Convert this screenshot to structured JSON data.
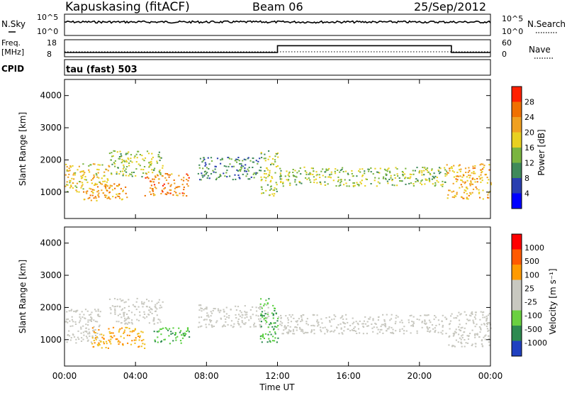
{
  "header": {
    "station": "Kapuskasing (fitACF)",
    "beam": "Beam 06",
    "date": "25/Sep/2012"
  },
  "noise_panel": {
    "left_label": "N.Sky",
    "right_label": "N.Search",
    "left_ticks": [
      "10^5",
      "10^0"
    ],
    "right_ticks": [
      "10^5",
      "10^0"
    ]
  },
  "freq_panel": {
    "left_label_1": "Freq.",
    "left_label_2": "[MHz]",
    "right_label": "Nave",
    "left_ticks": [
      "18",
      "8"
    ],
    "right_ticks": [
      "60",
      "0"
    ]
  },
  "cpid_panel": {
    "label": "CPID",
    "mode_text": "tau (fast) 503"
  },
  "power_panel": {
    "ylabel": "Slant Range [km]",
    "yticks": [
      "4000",
      "3000",
      "2000",
      "1000"
    ],
    "colorbar_label": "Power [dB]",
    "colorbar_ticks": [
      "28",
      "24",
      "20",
      "16",
      "12",
      "8",
      "4"
    ],
    "colorbar_colors": [
      "#0000ff",
      "#2a3fb0",
      "#3f8a5a",
      "#7ab540",
      "#e8d020",
      "#f0a020",
      "#f07000",
      "#ff2000"
    ]
  },
  "velocity_panel": {
    "ylabel": "Slant Range [km]",
    "yticks": [
      "4000",
      "3000",
      "2000",
      "1000"
    ],
    "colorbar_label": "Velocity [m s⁻¹]",
    "colorbar_ticks": [
      "1000",
      "500",
      "100",
      "25",
      "-25",
      "-100",
      "-500",
      "-1000"
    ],
    "colorbar_colors": [
      "#ff0000",
      "#ff5a00",
      "#ff9a00",
      "#c8c8c0",
      "#c8c8c0",
      "#6ad040",
      "#2e8a50",
      "#2040c0"
    ]
  },
  "xaxis": {
    "label": "Time UT",
    "ticks": [
      "00:00",
      "04:00",
      "08:00",
      "12:00",
      "16:00",
      "20:00",
      "00:00"
    ]
  },
  "chart_data": [
    {
      "type": "line",
      "title": "N.Sky / N.Search",
      "note": "noise level, roughly constant near mid-scale through the day",
      "x_range": [
        "00:00",
        "24:00"
      ]
    },
    {
      "type": "line",
      "title": "Freq. / Nave",
      "x": [
        0,
        12,
        12,
        21.8,
        21.8,
        24
      ],
      "freq_mhz": [
        10.5,
        10.5,
        14.5,
        14.5,
        10.5,
        10.5
      ],
      "ylim": [
        8,
        18
      ]
    },
    {
      "type": "heatmap",
      "title": "Power",
      "ylabel": "Slant Range [km]",
      "ylim": [
        180,
        4500
      ],
      "xlim": [
        0,
        24
      ],
      "colorbar_range_db": [
        0,
        30
      ],
      "regions": [
        {
          "t0": 0.0,
          "t1": 2.5,
          "r0": 1000,
          "r1": 1900,
          "level": 18
        },
        {
          "t0": 1.0,
          "t1": 3.5,
          "r0": 750,
          "r1": 1300,
          "level": 22
        },
        {
          "t0": 2.5,
          "t1": 5.5,
          "r0": 1500,
          "r1": 2300,
          "level": 14
        },
        {
          "t0": 4.5,
          "t1": 7.0,
          "r0": 900,
          "r1": 1600,
          "level": 24
        },
        {
          "t0": 7.5,
          "t1": 11.0,
          "r0": 1400,
          "r1": 2100,
          "level": 8
        },
        {
          "t0": 11.0,
          "t1": 12.0,
          "r0": 900,
          "r1": 2300,
          "level": 14
        },
        {
          "t0": 12.0,
          "t1": 21.5,
          "r0": 1200,
          "r1": 1800,
          "level": 14
        },
        {
          "t0": 21.5,
          "t1": 24.0,
          "r0": 800,
          "r1": 1900,
          "level": 20
        }
      ]
    },
    {
      "type": "heatmap",
      "title": "Velocity",
      "ylabel": "Slant Range [km]",
      "ylim": [
        180,
        4500
      ],
      "xlim": [
        0,
        24
      ],
      "colorbar_range": [
        -1000,
        1000
      ],
      "regions": [
        {
          "t0": 0.0,
          "t1": 2.0,
          "r0": 900,
          "r1": 2000,
          "vel": 0
        },
        {
          "t0": 1.5,
          "t1": 4.5,
          "r0": 750,
          "r1": 1400,
          "vel": -100
        },
        {
          "t0": 2.5,
          "t1": 5.5,
          "r0": 1500,
          "r1": 2300,
          "vel": 0
        },
        {
          "t0": 5.0,
          "t1": 7.0,
          "r0": 900,
          "r1": 1400,
          "vel": 100
        },
        {
          "t0": 7.5,
          "t1": 11.5,
          "r0": 1400,
          "r1": 2100,
          "vel": 0
        },
        {
          "t0": 11.0,
          "t1": 12.0,
          "r0": 900,
          "r1": 2300,
          "vel": 100
        },
        {
          "t0": 12.0,
          "t1": 21.5,
          "r0": 1200,
          "r1": 1800,
          "vel": 0
        },
        {
          "t0": 21.5,
          "t1": 24.0,
          "r0": 800,
          "r1": 1900,
          "vel": 0
        }
      ]
    }
  ]
}
